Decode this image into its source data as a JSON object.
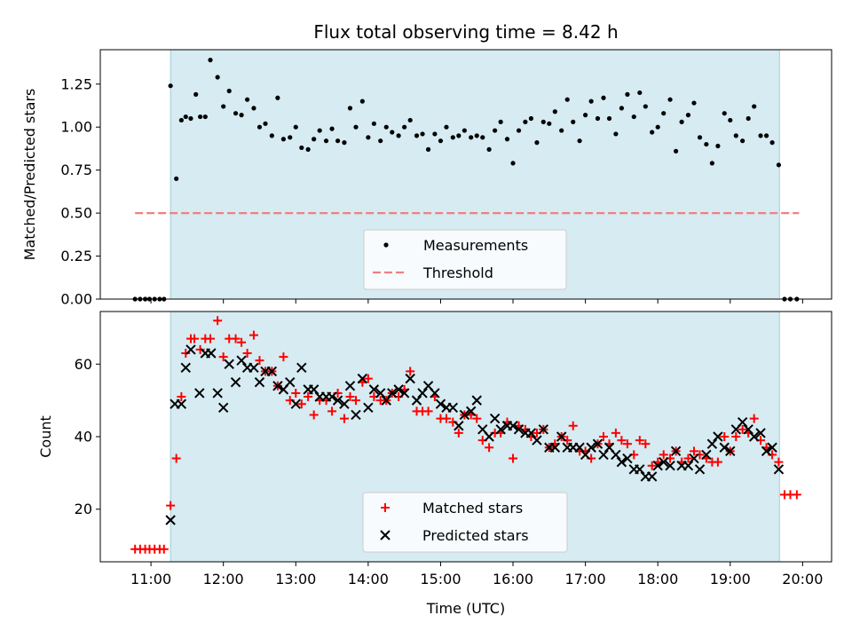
{
  "title": "Flux total observing time = 8.42 h",
  "chart_data": [
    {
      "type": "scatter",
      "ylabel": "Matched/Predicted stars",
      "xlabel": "",
      "xlim": [
        10.3,
        20.4
      ],
      "ylim": [
        0,
        1.45
      ],
      "yticks": [
        0.0,
        0.25,
        0.5,
        0.75,
        1.0,
        1.25
      ],
      "ytick_labels": [
        "0.00",
        "0.25",
        "0.50",
        "0.75",
        "1.00",
        "1.25"
      ],
      "observing_window": [
        11.27,
        19.68
      ],
      "threshold": {
        "value": 0.5,
        "x_range": [
          10.78,
          19.95
        ],
        "color": "#f08080"
      },
      "legend": {
        "position": "lower center",
        "entries": [
          "Measurements",
          "Threshold"
        ]
      },
      "series": [
        {
          "name": "Measurements",
          "marker": "dot",
          "color": "#000000",
          "x": [
            10.78,
            10.85,
            10.92,
            10.98,
            11.05,
            11.12,
            11.18,
            11.27,
            11.35,
            11.42,
            11.48,
            11.55,
            11.62,
            11.68,
            11.75,
            11.82,
            11.92,
            12.0,
            12.08,
            12.17,
            12.25,
            12.33,
            12.42,
            12.5,
            12.58,
            12.67,
            12.75,
            12.83,
            12.92,
            13.0,
            13.08,
            13.17,
            13.25,
            13.33,
            13.42,
            13.5,
            13.58,
            13.67,
            13.75,
            13.83,
            13.92,
            14.0,
            14.08,
            14.17,
            14.25,
            14.33,
            14.42,
            14.5,
            14.58,
            14.67,
            14.75,
            14.83,
            14.92,
            15.0,
            15.08,
            15.17,
            15.25,
            15.33,
            15.42,
            15.5,
            15.58,
            15.67,
            15.75,
            15.83,
            15.92,
            16.0,
            16.08,
            16.17,
            16.25,
            16.33,
            16.42,
            16.5,
            16.58,
            16.67,
            16.75,
            16.83,
            16.92,
            17.0,
            17.08,
            17.17,
            17.25,
            17.33,
            17.42,
            17.5,
            17.58,
            17.67,
            17.75,
            17.83,
            17.92,
            18.0,
            18.08,
            18.17,
            18.25,
            18.33,
            18.42,
            18.5,
            18.58,
            18.67,
            18.75,
            18.83,
            18.92,
            19.0,
            19.08,
            19.17,
            19.25,
            19.33,
            19.42,
            19.5,
            19.58,
            19.67,
            19.75,
            19.83,
            19.92
          ],
          "y": [
            0.0,
            0.0,
            0.0,
            0.0,
            0.0,
            0.0,
            0.0,
            1.24,
            0.7,
            1.04,
            1.06,
            1.05,
            1.19,
            1.06,
            1.06,
            1.39,
            1.29,
            1.12,
            1.21,
            1.08,
            1.07,
            1.16,
            1.11,
            1.0,
            1.02,
            0.95,
            1.17,
            0.93,
            0.94,
            1.0,
            0.88,
            0.87,
            0.93,
            0.98,
            0.92,
            0.99,
            0.92,
            0.91,
            1.11,
            1.0,
            1.15,
            0.94,
            1.02,
            0.92,
            1.0,
            0.97,
            0.95,
            1.0,
            1.04,
            0.95,
            0.96,
            0.87,
            0.96,
            0.92,
            1.0,
            0.94,
            0.95,
            0.98,
            0.94,
            0.95,
            0.94,
            0.87,
            0.98,
            1.03,
            0.93,
            0.79,
            0.98,
            1.03,
            1.05,
            0.91,
            1.03,
            1.02,
            1.09,
            0.98,
            1.16,
            1.03,
            0.92,
            1.07,
            1.15,
            1.05,
            1.17,
            1.05,
            0.96,
            1.11,
            1.19,
            1.06,
            1.2,
            1.12,
            0.97,
            1.0,
            1.08,
            1.16,
            0.86,
            1.03,
            1.07,
            1.14,
            0.94,
            0.9,
            0.79,
            0.89,
            1.08,
            1.04,
            0.95,
            0.92,
            1.05,
            1.12,
            0.95,
            0.95,
            0.91,
            0.78,
            0.0,
            0.0,
            0.0
          ]
        }
      ]
    },
    {
      "type": "scatter",
      "ylabel": "Count",
      "xlabel": "Time (UTC)",
      "xlim": [
        10.3,
        20.4
      ],
      "ylim": [
        5.5,
        74.5
      ],
      "xticks": [
        11,
        12,
        13,
        14,
        15,
        16,
        17,
        18,
        19,
        20
      ],
      "xtick_labels": [
        "11:00",
        "12:00",
        "13:00",
        "14:00",
        "15:00",
        "16:00",
        "17:00",
        "18:00",
        "19:00",
        "20:00"
      ],
      "yticks": [
        20,
        40,
        60
      ],
      "ytick_labels": [
        "20",
        "40",
        "60"
      ],
      "observing_window": [
        11.27,
        19.68
      ],
      "legend": {
        "position": "lower center",
        "entries": [
          "Matched stars",
          "Predicted stars"
        ]
      },
      "series": [
        {
          "name": "Matched stars",
          "marker": "plus",
          "color": "#ff0000",
          "x": [
            10.78,
            10.85,
            10.92,
            10.98,
            11.05,
            11.12,
            11.18,
            11.27,
            11.35,
            11.42,
            11.48,
            11.55,
            11.6,
            11.68,
            11.75,
            11.82,
            11.92,
            12.0,
            12.08,
            12.17,
            12.25,
            12.33,
            12.42,
            12.5,
            12.58,
            12.67,
            12.75,
            12.83,
            12.92,
            13.0,
            13.08,
            13.17,
            13.25,
            13.33,
            13.42,
            13.5,
            13.58,
            13.67,
            13.75,
            13.83,
            13.92,
            14.0,
            14.08,
            14.17,
            14.25,
            14.33,
            14.42,
            14.5,
            14.58,
            14.67,
            14.75,
            14.83,
            14.92,
            15.0,
            15.08,
            15.17,
            15.25,
            15.33,
            15.42,
            15.5,
            15.58,
            15.67,
            15.75,
            15.83,
            15.92,
            16.0,
            16.08,
            16.17,
            16.25,
            16.33,
            16.42,
            16.5,
            16.58,
            16.67,
            16.75,
            16.83,
            16.92,
            17.0,
            17.08,
            17.17,
            17.25,
            17.33,
            17.42,
            17.5,
            17.58,
            17.67,
            17.75,
            17.83,
            17.92,
            18.0,
            18.08,
            18.17,
            18.25,
            18.33,
            18.42,
            18.5,
            18.58,
            18.67,
            18.75,
            18.83,
            18.92,
            19.0,
            19.08,
            19.17,
            19.25,
            19.33,
            19.42,
            19.5,
            19.58,
            19.67,
            19.75,
            19.83,
            19.92
          ],
          "y": [
            9,
            9,
            9,
            9,
            9,
            9,
            9,
            21,
            34,
            51,
            63,
            67,
            67,
            64,
            67,
            67,
            72,
            62,
            67,
            67,
            66,
            63,
            68,
            61,
            58,
            58,
            54,
            62,
            50,
            52,
            49,
            51,
            46,
            50,
            50,
            47,
            52,
            45,
            51,
            50,
            55,
            56,
            51,
            50,
            50,
            52,
            51,
            53,
            58,
            47,
            47,
            47,
            51,
            45,
            45,
            44,
            41,
            46,
            46,
            45,
            39,
            37,
            41,
            41,
            44,
            34,
            43,
            42,
            40,
            41,
            42,
            37,
            38,
            40,
            39,
            43,
            36,
            36,
            34,
            38,
            40,
            38,
            41,
            39,
            38,
            35,
            39,
            38,
            32,
            33,
            35,
            34,
            36,
            33,
            34,
            36,
            35,
            34,
            33,
            33,
            40,
            36,
            40,
            42,
            41,
            45,
            39,
            37,
            35,
            33,
            24,
            24,
            24
          ]
        },
        {
          "name": "Predicted stars",
          "marker": "x",
          "color": "#000000",
          "x": [
            11.27,
            11.33,
            11.42,
            11.48,
            11.55,
            11.67,
            11.75,
            11.83,
            11.92,
            12.0,
            12.08,
            12.17,
            12.25,
            12.33,
            12.42,
            12.5,
            12.58,
            12.67,
            12.75,
            12.83,
            12.92,
            13.0,
            13.08,
            13.17,
            13.25,
            13.33,
            13.42,
            13.5,
            13.58,
            13.67,
            13.75,
            13.83,
            13.92,
            14.0,
            14.08,
            14.17,
            14.25,
            14.33,
            14.42,
            14.5,
            14.58,
            14.67,
            14.75,
            14.83,
            14.92,
            15.0,
            15.08,
            15.17,
            15.25,
            15.33,
            15.42,
            15.5,
            15.58,
            15.67,
            15.75,
            15.83,
            15.92,
            16.0,
            16.08,
            16.17,
            16.25,
            16.33,
            16.42,
            16.5,
            16.58,
            16.67,
            16.75,
            16.83,
            16.92,
            17.0,
            17.08,
            17.17,
            17.25,
            17.33,
            17.42,
            17.5,
            17.58,
            17.67,
            17.75,
            17.83,
            17.92,
            18.0,
            18.08,
            18.17,
            18.25,
            18.33,
            18.42,
            18.5,
            18.58,
            18.67,
            18.75,
            18.83,
            18.92,
            19.0,
            19.08,
            19.17,
            19.25,
            19.33,
            19.42,
            19.5,
            19.58,
            19.67
          ],
          "y": [
            17,
            49,
            49,
            59,
            64,
            52,
            63,
            63,
            52,
            48,
            60,
            55,
            61,
            59,
            59,
            55,
            58,
            58,
            54,
            53,
            55,
            49,
            59,
            53,
            53,
            51,
            51,
            51,
            50,
            49,
            54,
            46,
            56,
            48,
            53,
            52,
            50,
            52,
            53,
            52,
            56,
            50,
            52,
            54,
            52,
            49,
            48,
            48,
            43,
            46,
            47,
            50,
            42,
            40,
            45,
            42,
            43,
            43,
            42,
            41,
            41,
            39,
            42,
            37,
            37,
            40,
            37,
            37,
            37,
            35,
            37,
            38,
            35,
            37,
            35,
            33,
            34,
            31,
            31,
            29,
            29,
            32,
            33,
            32,
            36,
            32,
            32,
            34,
            31,
            35,
            38,
            40,
            37,
            36,
            42,
            44,
            42,
            40,
            41,
            36,
            37,
            31
          ]
        }
      ]
    }
  ]
}
